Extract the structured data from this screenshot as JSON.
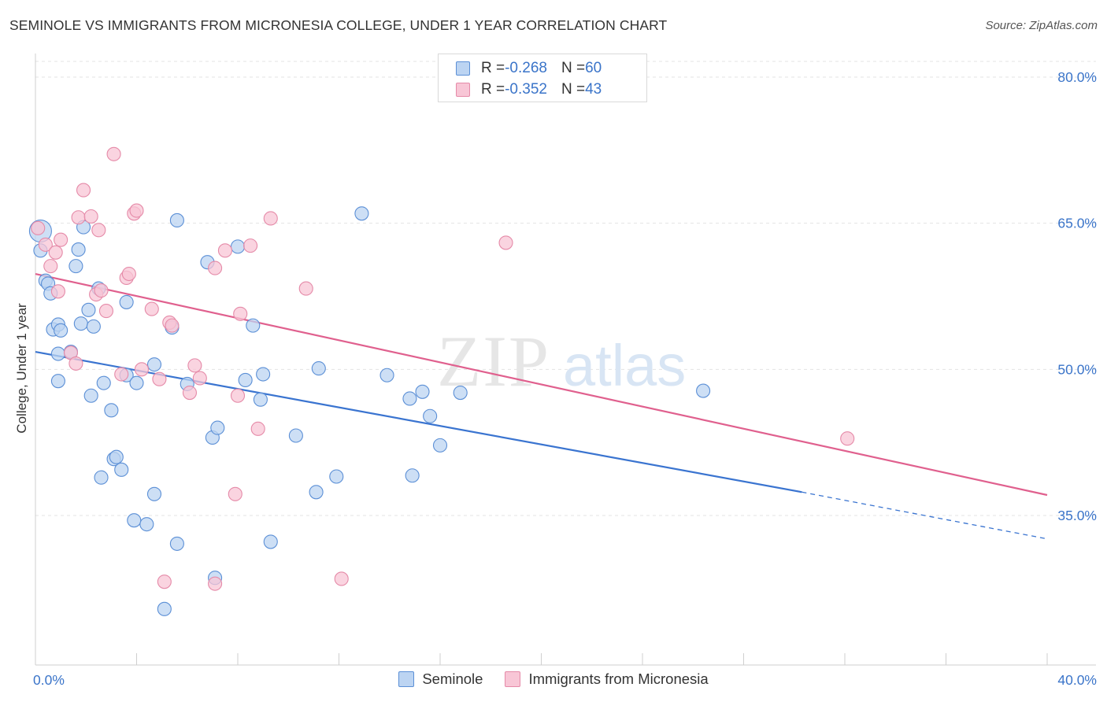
{
  "header": {
    "title": "SEMINOLE VS IMMIGRANTS FROM MICRONESIA COLLEGE, UNDER 1 YEAR CORRELATION CHART",
    "source": "Source: ZipAtlas.com"
  },
  "watermark": {
    "part1": "ZIP",
    "part2": "atlas"
  },
  "legend_top": {
    "rows": [
      {
        "r_label": "R = ",
        "r_value": "-0.268",
        "n_label": "N = ",
        "n_value": "60"
      },
      {
        "r_label": "R = ",
        "r_value": "-0.352",
        "n_label": "N = ",
        "n_value": "43"
      }
    ]
  },
  "legend_bottom": {
    "items": [
      "Seminole",
      "Immigrants from Micronesia"
    ]
  },
  "colors": {
    "seminole_fill": "#bcd4f2",
    "seminole_stroke": "#5b8fd6",
    "seminole_line": "#3a74d0",
    "micronesia_fill": "#f8c6d6",
    "micronesia_stroke": "#e58aa8",
    "micronesia_line": "#e0608e",
    "axis_label": "#3a74c9",
    "grid": "#e3e3e3"
  },
  "chart_data": {
    "type": "scatter",
    "title": "SEMINOLE VS IMMIGRANTS FROM MICRONESIA COLLEGE, UNDER 1 YEAR CORRELATION CHART",
    "xlabel": "",
    "ylabel": "College, Under 1 year",
    "xlim": [
      0,
      40
    ],
    "ylim": [
      21,
      82
    ],
    "x_tick_labels": [
      "0.0%",
      "40.0%"
    ],
    "y_ticks": [
      35,
      50,
      65,
      80
    ],
    "y_tick_labels": [
      "35.0%",
      "50.0%",
      "65.0%",
      "80.0%"
    ],
    "grid": true,
    "series": [
      {
        "name": "Seminole",
        "r": -0.268,
        "n": 60,
        "trend": {
          "x0": 0,
          "y0": 51.8,
          "x1": 30.3,
          "y1": 37.4,
          "dash_to_x": 40,
          "dash_to_y": 32.6
        },
        "points": [
          [
            0.2,
            64.2
          ],
          [
            0.2,
            62.2
          ],
          [
            0.4,
            59.1
          ],
          [
            0.5,
            58.8
          ],
          [
            0.6,
            57.8
          ],
          [
            0.7,
            54.1
          ],
          [
            0.9,
            54.6
          ],
          [
            1.0,
            54.0
          ],
          [
            0.9,
            51.6
          ],
          [
            1.4,
            51.8
          ],
          [
            0.9,
            48.8
          ],
          [
            1.6,
            60.6
          ],
          [
            1.7,
            62.3
          ],
          [
            1.9,
            64.6
          ],
          [
            2.1,
            56.1
          ],
          [
            1.8,
            54.7
          ],
          [
            2.3,
            54.4
          ],
          [
            2.5,
            58.3
          ],
          [
            2.2,
            47.3
          ],
          [
            2.7,
            48.6
          ],
          [
            3.0,
            45.8
          ],
          [
            3.6,
            49.4
          ],
          [
            3.6,
            56.9
          ],
          [
            3.1,
            40.8
          ],
          [
            3.2,
            41.0
          ],
          [
            2.6,
            38.9
          ],
          [
            3.4,
            39.7
          ],
          [
            4.0,
            48.6
          ],
          [
            4.7,
            50.5
          ],
          [
            5.4,
            54.3
          ],
          [
            5.6,
            65.3
          ],
          [
            4.7,
            37.2
          ],
          [
            3.9,
            34.5
          ],
          [
            4.4,
            34.1
          ],
          [
            5.6,
            32.1
          ],
          [
            5.1,
            25.4
          ],
          [
            6.0,
            48.5
          ],
          [
            6.8,
            61.0
          ],
          [
            7.0,
            43.0
          ],
          [
            7.2,
            44.0
          ],
          [
            7.1,
            28.6
          ],
          [
            8.0,
            62.6
          ],
          [
            8.6,
            54.5
          ],
          [
            8.3,
            48.9
          ],
          [
            8.9,
            46.9
          ],
          [
            9.0,
            49.5
          ],
          [
            9.3,
            32.3
          ],
          [
            10.3,
            43.2
          ],
          [
            11.2,
            50.1
          ],
          [
            11.1,
            37.4
          ],
          [
            11.9,
            39.0
          ],
          [
            12.9,
            66.0
          ],
          [
            13.9,
            49.4
          ],
          [
            14.8,
            47.0
          ],
          [
            15.3,
            47.7
          ],
          [
            15.6,
            45.2
          ],
          [
            14.9,
            39.1
          ],
          [
            16.0,
            42.2
          ],
          [
            16.8,
            47.6
          ],
          [
            26.4,
            47.8
          ]
        ]
      },
      {
        "name": "Immigrants from Micronesia",
        "r": -0.352,
        "n": 43,
        "trend": {
          "x0": 0,
          "y0": 59.8,
          "x1": 40,
          "y1": 37.1
        },
        "points": [
          [
            0.1,
            64.5
          ],
          [
            0.4,
            62.8
          ],
          [
            0.6,
            60.6
          ],
          [
            0.8,
            62.0
          ],
          [
            1.0,
            63.3
          ],
          [
            0.9,
            58.0
          ],
          [
            1.4,
            51.7
          ],
          [
            1.6,
            50.6
          ],
          [
            1.7,
            65.6
          ],
          [
            1.9,
            68.4
          ],
          [
            2.2,
            65.7
          ],
          [
            2.5,
            64.3
          ],
          [
            2.4,
            57.7
          ],
          [
            2.6,
            58.1
          ],
          [
            2.8,
            56.0
          ],
          [
            3.1,
            72.1
          ],
          [
            3.4,
            49.5
          ],
          [
            3.6,
            59.4
          ],
          [
            3.7,
            59.8
          ],
          [
            3.9,
            66.0
          ],
          [
            4.0,
            66.3
          ],
          [
            4.2,
            50.0
          ],
          [
            4.6,
            56.2
          ],
          [
            4.9,
            49.0
          ],
          [
            5.3,
            54.8
          ],
          [
            5.4,
            54.5
          ],
          [
            6.1,
            47.6
          ],
          [
            6.3,
            50.4
          ],
          [
            6.5,
            49.1
          ],
          [
            7.1,
            60.4
          ],
          [
            7.5,
            62.2
          ],
          [
            7.9,
            37.2
          ],
          [
            8.0,
            47.3
          ],
          [
            8.1,
            55.7
          ],
          [
            8.5,
            62.7
          ],
          [
            8.8,
            43.9
          ],
          [
            9.3,
            65.5
          ],
          [
            10.7,
            58.3
          ],
          [
            12.1,
            28.5
          ],
          [
            7.1,
            28.0
          ],
          [
            18.6,
            63.0
          ],
          [
            32.1,
            42.9
          ],
          [
            5.1,
            28.2
          ]
        ]
      }
    ]
  }
}
